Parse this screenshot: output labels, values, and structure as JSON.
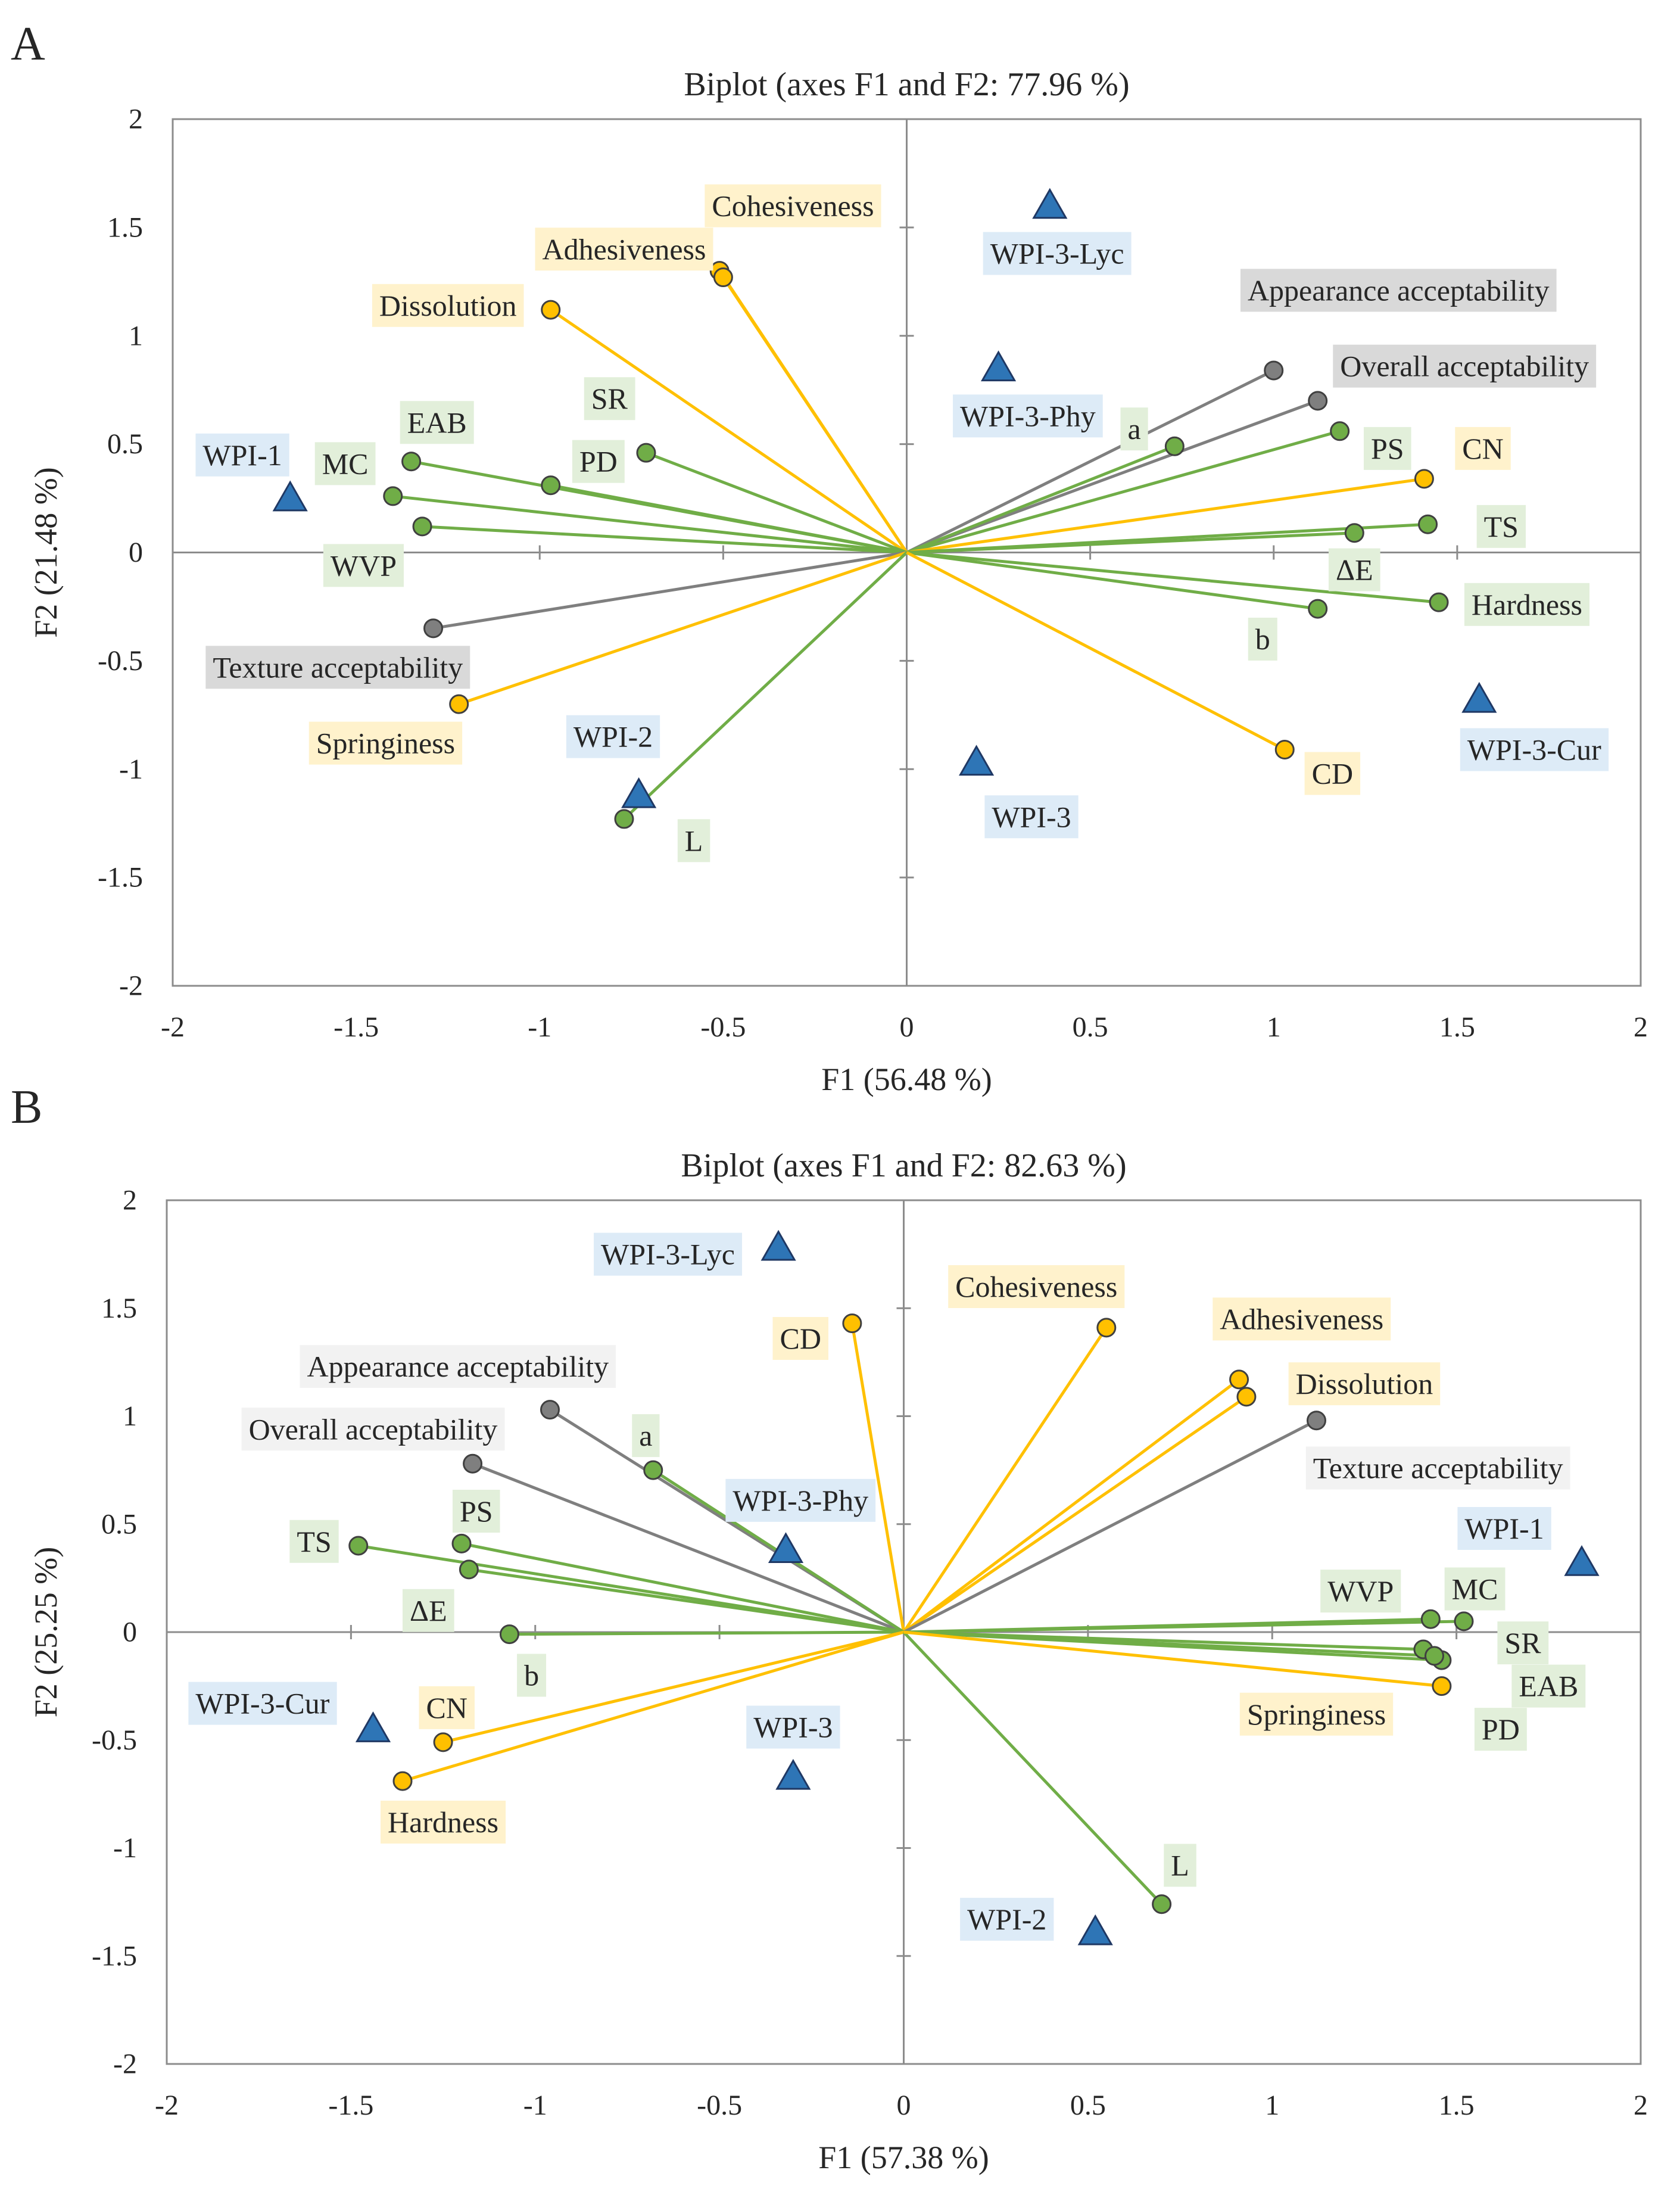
{
  "colors": {
    "color_green": "#70ad47",
    "color_yellow": "#ffc000",
    "color_gray": "#7f7f7f",
    "color_blue": "#2e75b6",
    "bg_green": "#e2efda",
    "bg_yellow": "#fff2cc",
    "bg_blue": "#ddebf7",
    "bg_gray": "#d9d9d9",
    "bg_lightgray": "#f2f2f2"
  },
  "chart_data": [
    {
      "panel": "A",
      "type": "scatter",
      "title": "Biplot (axes F1 and F2: 77.96 %)",
      "xlabel": "F1 (56.48 %)",
      "ylabel": "F2 (21.48 %)",
      "xlim": [
        -2,
        2
      ],
      "ylim": [
        -2,
        2
      ],
      "xticks": [
        "-2",
        "-1.5",
        "-1",
        "-0.5",
        "0",
        "0.5",
        "1",
        "1.5",
        "2"
      ],
      "yticks": [
        "2",
        "1.5",
        "1",
        "0.5",
        "0",
        "-0.5",
        "-1",
        "-1.5",
        "-2"
      ],
      "variables": [
        {
          "label": "Cohesiveness",
          "x": -0.51,
          "y": 1.3,
          "color": "yellow",
          "lx": -0.31,
          "ly": 1.6,
          "bg": "bg_yellow"
        },
        {
          "label": "Adhesiveness",
          "x": -0.5,
          "y": 1.27,
          "color": "yellow",
          "lx": -0.77,
          "ly": 1.4,
          "bg": "bg_yellow"
        },
        {
          "label": "Dissolution",
          "x": -0.97,
          "y": 1.12,
          "color": "yellow",
          "lx": -1.25,
          "ly": 1.14,
          "bg": "bg_yellow"
        },
        {
          "label": "SR",
          "x": -0.71,
          "y": 0.46,
          "color": "green",
          "lx": -0.81,
          "ly": 0.71,
          "bg": "bg_green"
        },
        {
          "label": "PD",
          "x": -0.97,
          "y": 0.31,
          "color": "green",
          "lx": -0.84,
          "ly": 0.42,
          "bg": "bg_green"
        },
        {
          "label": "EAB",
          "x": -1.35,
          "y": 0.42,
          "color": "green",
          "lx": -1.28,
          "ly": 0.6,
          "bg": "bg_green"
        },
        {
          "label": "MC",
          "x": -1.4,
          "y": 0.26,
          "color": "green",
          "lx": -1.53,
          "ly": 0.41,
          "bg": "bg_green"
        },
        {
          "label": "WVP",
          "x": -1.32,
          "y": 0.12,
          "color": "green",
          "lx": -1.48,
          "ly": -0.06,
          "bg": "bg_green"
        },
        {
          "label": "Texture acceptability",
          "x": -1.29,
          "y": -0.35,
          "color": "gray",
          "lx": -1.55,
          "ly": -0.53,
          "bg": "bg_gray"
        },
        {
          "label": "Springiness",
          "x": -1.22,
          "y": -0.7,
          "color": "yellow",
          "lx": -1.42,
          "ly": -0.88,
          "bg": "bg_yellow"
        },
        {
          "label": "L",
          "x": -0.77,
          "y": -1.23,
          "color": "green",
          "lx": -0.58,
          "ly": -1.33,
          "bg": "bg_green"
        },
        {
          "label": "Appearance acceptability",
          "x": 1.0,
          "y": 0.84,
          "color": "gray",
          "lx": 1.34,
          "ly": 1.21,
          "bg": "bg_gray"
        },
        {
          "label": "Overall acceptability",
          "x": 1.12,
          "y": 0.7,
          "color": "gray",
          "lx": 1.52,
          "ly": 0.86,
          "bg": "bg_gray"
        },
        {
          "label": "a",
          "x": 0.73,
          "y": 0.49,
          "color": "green",
          "lx": 0.62,
          "ly": 0.57,
          "bg": "bg_green"
        },
        {
          "label": "PS",
          "x": 1.18,
          "y": 0.56,
          "color": "green",
          "lx": 1.31,
          "ly": 0.48,
          "bg": "bg_green"
        },
        {
          "label": "CN",
          "x": 1.41,
          "y": 0.34,
          "color": "yellow",
          "lx": 1.57,
          "ly": 0.48,
          "bg": "bg_yellow"
        },
        {
          "label": "TS",
          "x": 1.42,
          "y": 0.13,
          "color": "green",
          "lx": 1.62,
          "ly": 0.12,
          "bg": "bg_green"
        },
        {
          "label": "ΔE",
          "x": 1.22,
          "y": 0.09,
          "color": "green",
          "lx": 1.22,
          "ly": -0.08,
          "bg": "bg_green"
        },
        {
          "label": "b",
          "x": 1.12,
          "y": -0.26,
          "color": "green",
          "lx": 0.97,
          "ly": -0.4,
          "bg": "bg_green"
        },
        {
          "label": "Hardness",
          "x": 1.45,
          "y": -0.23,
          "color": "green",
          "lx": 1.69,
          "ly": -0.24,
          "bg": "bg_green"
        },
        {
          "label": "CD",
          "x": 1.03,
          "y": -0.91,
          "color": "yellow",
          "lx": 1.16,
          "ly": -1.02,
          "bg": "bg_yellow"
        }
      ],
      "observations": [
        {
          "label": "WPI-1",
          "x": -1.68,
          "y": 0.25,
          "lx": -1.81,
          "ly": 0.45
        },
        {
          "label": "WPI-2",
          "x": -0.73,
          "y": -1.12,
          "lx": -0.8,
          "ly": -0.85
        },
        {
          "label": "WPI-3",
          "x": 0.19,
          "y": -0.97,
          "lx": 0.34,
          "ly": -1.22
        },
        {
          "label": "WPI-3-Lyc",
          "x": 0.39,
          "y": 1.6,
          "lx": 0.41,
          "ly": 1.38
        },
        {
          "label": "WPI-3-Phy",
          "x": 0.25,
          "y": 0.85,
          "lx": 0.33,
          "ly": 0.63
        },
        {
          "label": "WPI-3-Cur",
          "x": 1.56,
          "y": -0.68,
          "lx": 1.71,
          "ly": -0.91
        }
      ]
    },
    {
      "panel": "B",
      "type": "scatter",
      "title": "Biplot (axes F1 and F2: 82.63 %)",
      "xlabel": "F1 (57.38 %)",
      "ylabel": "F2 (25.25 %)",
      "xlim": [
        -2,
        2
      ],
      "ylim": [
        -2,
        2
      ],
      "xticks": [
        "-2",
        "-1.5",
        "-1",
        "-0.5",
        "0",
        "0.5",
        "1",
        "1.5",
        "2"
      ],
      "yticks": [
        "2",
        "1.5",
        "1",
        "0.5",
        "0",
        "-0.5",
        "-1",
        "-1.5",
        "-2"
      ],
      "variables": [
        {
          "label": "CD",
          "x": -0.14,
          "y": 1.43,
          "color": "yellow",
          "lx": -0.28,
          "ly": 1.36,
          "bg": "bg_yellow"
        },
        {
          "label": "Cohesiveness",
          "x": 0.55,
          "y": 1.41,
          "color": "yellow",
          "lx": 0.36,
          "ly": 1.6,
          "bg": "bg_yellow"
        },
        {
          "label": "Adhesiveness",
          "x": 0.91,
          "y": 1.17,
          "color": "yellow",
          "lx": 1.08,
          "ly": 1.45,
          "bg": "bg_yellow"
        },
        {
          "label": "Dissolution",
          "x": 0.93,
          "y": 1.09,
          "color": "yellow",
          "lx": 1.25,
          "ly": 1.15,
          "bg": "bg_yellow"
        },
        {
          "label": "Texture acceptability",
          "x": 1.12,
          "y": 0.98,
          "color": "gray",
          "lx": 1.45,
          "ly": 0.76,
          "bg": "bg_lightgray"
        },
        {
          "label": "Appearance acceptability",
          "x": -0.96,
          "y": 1.03,
          "color": "gray",
          "lx": -1.21,
          "ly": 1.23,
          "bg": "bg_lightgray"
        },
        {
          "label": "Overall acceptability",
          "x": -1.17,
          "y": 0.78,
          "color": "gray",
          "lx": -1.44,
          "ly": 0.94,
          "bg": "bg_lightgray"
        },
        {
          "label": "a",
          "x": -0.68,
          "y": 0.75,
          "color": "green",
          "lx": -0.7,
          "ly": 0.91,
          "bg": "bg_green"
        },
        {
          "label": "TS",
          "x": -1.48,
          "y": 0.4,
          "color": "green",
          "lx": -1.6,
          "ly": 0.42,
          "bg": "bg_green"
        },
        {
          "label": "PS",
          "x": -1.2,
          "y": 0.41,
          "color": "green",
          "lx": -1.16,
          "ly": 0.56,
          "bg": "bg_green"
        },
        {
          "label": "ΔE",
          "x": -1.18,
          "y": 0.29,
          "color": "green",
          "lx": -1.29,
          "ly": 0.1,
          "bg": "bg_green"
        },
        {
          "label": "b",
          "x": -1.07,
          "y": -0.01,
          "color": "green",
          "lx": -1.01,
          "ly": -0.2,
          "bg": "bg_green"
        },
        {
          "label": "CN",
          "x": -1.25,
          "y": -0.51,
          "color": "yellow",
          "lx": -1.24,
          "ly": -0.35,
          "bg": "bg_yellow"
        },
        {
          "label": "Hardness",
          "x": -1.36,
          "y": -0.69,
          "color": "yellow",
          "lx": -1.25,
          "ly": -0.88,
          "bg": "bg_yellow"
        },
        {
          "label": "L",
          "x": 0.7,
          "y": -1.26,
          "color": "green",
          "lx": 0.75,
          "ly": -1.08,
          "bg": "bg_green"
        },
        {
          "label": "WVP",
          "x": 1.43,
          "y": 0.06,
          "color": "green",
          "lx": 1.24,
          "ly": 0.19,
          "bg": "bg_green"
        },
        {
          "label": "MC",
          "x": 1.52,
          "y": 0.05,
          "color": "green",
          "lx": 1.55,
          "ly": 0.2,
          "bg": "bg_green"
        },
        {
          "label": "SR",
          "x": 1.41,
          "y": -0.08,
          "color": "green",
          "lx": 1.68,
          "ly": -0.05,
          "bg": "bg_green"
        },
        {
          "label": "EAB",
          "x": 1.46,
          "y": -0.13,
          "color": "green",
          "lx": 1.75,
          "ly": -0.25,
          "bg": "bg_green"
        },
        {
          "label": "PD",
          "x": 1.44,
          "y": -0.11,
          "color": "green",
          "lx": 1.62,
          "ly": -0.45,
          "bg": "bg_green"
        },
        {
          "label": "Springiness",
          "x": 1.46,
          "y": -0.25,
          "color": "yellow",
          "lx": 1.12,
          "ly": -0.38,
          "bg": "bg_yellow"
        }
      ],
      "observations": [
        {
          "label": "WPI-3-Lyc",
          "x": -0.34,
          "y": 1.78,
          "lx": -0.64,
          "ly": 1.75
        },
        {
          "label": "WPI-3-Phy",
          "x": -0.32,
          "y": 0.38,
          "lx": -0.28,
          "ly": 0.61
        },
        {
          "label": "WPI-1",
          "x": 1.84,
          "y": 0.32,
          "lx": 1.63,
          "ly": 0.48
        },
        {
          "label": "WPI-3-Cur",
          "x": -1.44,
          "y": -0.45,
          "lx": -1.74,
          "ly": -0.33
        },
        {
          "label": "WPI-3",
          "x": -0.3,
          "y": -0.67,
          "lx": -0.3,
          "ly": -0.44
        },
        {
          "label": "WPI-2",
          "x": 0.52,
          "y": -1.39,
          "lx": 0.28,
          "ly": -1.33
        }
      ]
    }
  ]
}
